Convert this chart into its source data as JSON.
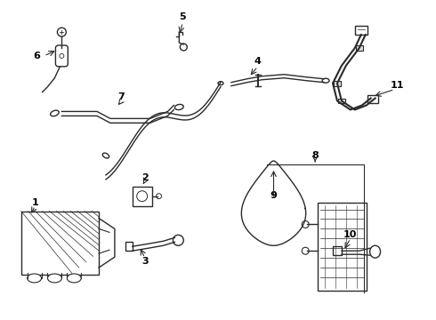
{
  "background_color": "#ffffff",
  "line_color": "#2a2a2a",
  "label_color": "#000000",
  "lw": 1.0,
  "fig_w": 4.9,
  "fig_h": 3.6,
  "dpi": 100
}
